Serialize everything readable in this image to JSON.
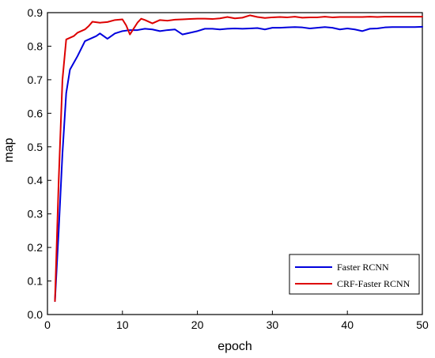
{
  "chart_data": {
    "type": "line",
    "xlabel": "epoch",
    "ylabel": "map",
    "xlim": [
      0,
      50
    ],
    "ylim": [
      0,
      0.9
    ],
    "xticks": [
      0,
      10,
      20,
      30,
      40,
      50
    ],
    "yticks": [
      0.0,
      0.1,
      0.2,
      0.3,
      0.4,
      0.5,
      0.6,
      0.7,
      0.8,
      0.9
    ],
    "ytick_labels": [
      "0.0",
      "0.1",
      "0.2",
      "0.3",
      "0.4",
      "0.5",
      "0.6",
      "0.7",
      "0.8",
      "0.9"
    ],
    "xtick_labels": [
      "0",
      "10",
      "20",
      "30",
      "40",
      "50"
    ],
    "grid": false,
    "legend": "bottom-right",
    "series": [
      {
        "name": "Faster RCNN",
        "color": "#0000dd",
        "x": [
          1,
          1.5,
          2,
          2.5,
          3,
          3.5,
          4,
          5,
          6,
          6.5,
          7,
          8,
          9,
          10,
          11,
          12,
          13,
          14,
          15,
          16,
          17,
          18,
          19,
          20,
          21,
          22,
          23,
          24,
          25,
          26,
          27,
          28,
          29,
          30,
          31,
          32,
          33,
          34,
          35,
          36,
          37,
          38,
          39,
          40,
          41,
          42,
          43,
          44,
          45,
          46,
          47,
          48,
          49,
          50
        ],
        "y": [
          0.04,
          0.25,
          0.48,
          0.66,
          0.73,
          0.75,
          0.77,
          0.815,
          0.825,
          0.83,
          0.838,
          0.822,
          0.838,
          0.845,
          0.848,
          0.848,
          0.852,
          0.85,
          0.845,
          0.848,
          0.85,
          0.835,
          0.84,
          0.845,
          0.852,
          0.852,
          0.85,
          0.852,
          0.853,
          0.852,
          0.853,
          0.854,
          0.85,
          0.855,
          0.855,
          0.856,
          0.857,
          0.856,
          0.853,
          0.855,
          0.857,
          0.855,
          0.85,
          0.853,
          0.85,
          0.845,
          0.852,
          0.853,
          0.856,
          0.857,
          0.857,
          0.857,
          0.857,
          0.858
        ]
      },
      {
        "name": "CRF-Faster RCNN",
        "color": "#dd0000",
        "x": [
          1,
          1.5,
          2,
          2.5,
          3,
          3.5,
          4,
          5,
          5.5,
          6,
          7,
          8,
          9,
          10,
          10.5,
          11,
          12,
          12.5,
          13,
          14,
          15,
          16,
          17,
          18,
          19,
          20,
          21,
          22,
          23,
          24,
          25,
          26,
          27,
          28,
          29,
          30,
          31,
          32,
          33,
          34,
          35,
          36,
          37,
          38,
          39,
          40,
          41,
          42,
          43,
          44,
          45,
          46,
          47,
          48,
          49,
          50
        ],
        "y": [
          0.04,
          0.4,
          0.7,
          0.82,
          0.825,
          0.83,
          0.84,
          0.85,
          0.86,
          0.873,
          0.87,
          0.872,
          0.878,
          0.88,
          0.862,
          0.835,
          0.87,
          0.882,
          0.878,
          0.868,
          0.878,
          0.876,
          0.879,
          0.88,
          0.881,
          0.882,
          0.882,
          0.881,
          0.883,
          0.887,
          0.883,
          0.885,
          0.892,
          0.887,
          0.884,
          0.886,
          0.887,
          0.886,
          0.888,
          0.885,
          0.886,
          0.886,
          0.888,
          0.886,
          0.887,
          0.887,
          0.887,
          0.887,
          0.888,
          0.887,
          0.888,
          0.888,
          0.888,
          0.888,
          0.888,
          0.888
        ]
      }
    ]
  }
}
